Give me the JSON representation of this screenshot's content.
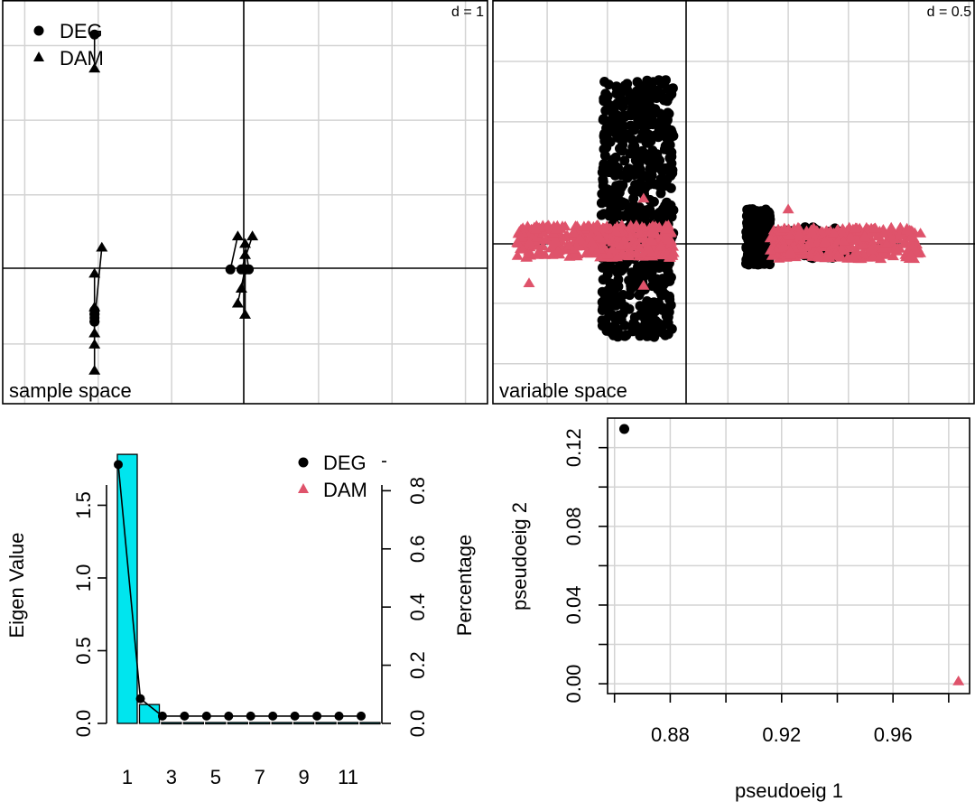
{
  "colors": {
    "deg": "#000000",
    "dam": "#df536b",
    "bar": "#00e5ee",
    "grid": "#d3d3d3"
  },
  "chart_data": [
    {
      "type": "scatter",
      "title": "sample space",
      "scale_label": "d = 1",
      "legend": {
        "placement": "top-left",
        "entries": [
          {
            "label": "DEG",
            "shape": "circle"
          },
          {
            "label": "DAM",
            "shape": "triangle"
          }
        ]
      },
      "x_range": [
        -3.3,
        3.3
      ],
      "y_range": [
        -1.8,
        3.6
      ],
      "grid_step": 1,
      "pairs": [
        {
          "deg": [
            -2.05,
            3.15
          ],
          "dam": [
            -2.05,
            2.7
          ]
        },
        {
          "deg": [
            -2.05,
            -0.7
          ],
          "dam": [
            -1.95,
            0.3
          ]
        },
        {
          "deg": [
            -2.05,
            -0.55
          ],
          "dam": [
            -2.05,
            -0.05
          ]
        },
        {
          "deg": [
            -2.05,
            -0.6
          ],
          "dam": [
            -2.05,
            -0.5
          ]
        },
        {
          "deg": [
            -2.05,
            -0.65
          ],
          "dam": [
            -2.05,
            -1.0
          ]
        },
        {
          "deg": [
            -2.05,
            -0.7
          ],
          "dam": [
            -2.05,
            -1.35
          ]
        },
        {
          "deg": [
            -2.05,
            -0.6
          ],
          "dam": [
            -2.05,
            -0.85
          ]
        },
        {
          "deg": [
            -0.2,
            0.0
          ],
          "dam": [
            -0.1,
            0.45
          ]
        },
        {
          "deg": [
            -0.05,
            0.0
          ],
          "dam": [
            0.1,
            0.45
          ]
        },
        {
          "deg": [
            0.05,
            0.0
          ],
          "dam": [
            0.0,
            0.35
          ]
        },
        {
          "deg": [
            0.0,
            0.0
          ],
          "dam": [
            0.0,
            0.2
          ]
        },
        {
          "deg": [
            0.0,
            0.0
          ],
          "dam": [
            -0.05,
            -0.25
          ]
        },
        {
          "deg": [
            0.0,
            0.0
          ],
          "dam": [
            -0.1,
            -0.45
          ]
        },
        {
          "deg": [
            0.0,
            0.0
          ],
          "dam": [
            0.0,
            -0.6
          ]
        }
      ]
    },
    {
      "type": "scatter",
      "title": "variable space",
      "scale_label": "d = 0.5",
      "x_range": [
        -1.45,
        2.55
      ],
      "y_range": [
        -1.33,
        2.0
      ],
      "grid_step": 0.5,
      "deg_clusters": [
        {
          "n": 650,
          "x": [
            -0.55,
            0.05
          ],
          "y": [
            -0.78,
            1.35
          ]
        },
        {
          "n": 260,
          "x": [
            0.65,
            0.85
          ],
          "y": [
            -0.18,
            0.28
          ]
        },
        {
          "n": 120,
          "x": [
            0.85,
            1.5
          ],
          "y": [
            -0.13,
            0.13
          ]
        }
      ],
      "dam_clusters": [
        {
          "n": 360,
          "x": [
            -1.25,
            0.05
          ],
          "y": [
            -0.12,
            0.15
          ]
        },
        {
          "n": 330,
          "x": [
            0.85,
            2.1
          ],
          "y": [
            -0.13,
            0.13
          ]
        }
      ],
      "dam_extra": [
        [
          -0.2,
          0.37
        ],
        [
          1.0,
          0.28
        ],
        [
          -1.15,
          -0.33
        ],
        [
          -0.2,
          -0.35
        ]
      ]
    },
    {
      "type": "bar",
      "ylabel": "Eigen Value",
      "y2label": "Percentage",
      "x": [
        1,
        2,
        3,
        4,
        5,
        6,
        7,
        8,
        9,
        10,
        11,
        12
      ],
      "x_tick_labels": [
        "1",
        "3",
        "5",
        "7",
        "9",
        "11"
      ],
      "bars": [
        1.85,
        0.13,
        0.006,
        0.006,
        0.006,
        0.006,
        0.006,
        0.006,
        0.006,
        0.006,
        0.006,
        0.006
      ],
      "percentage": [
        0.9,
        0.063,
        0.003,
        0.003,
        0.003,
        0.003,
        0.003,
        0.003,
        0.003,
        0.003,
        0.003,
        0.003
      ],
      "eigen_values": [
        1.78,
        0.17,
        0.05,
        0.05,
        0.05,
        0.05,
        0.05,
        0.05,
        0.05,
        0.05,
        0.05,
        0.05
      ],
      "y_ticks": [
        "0.0",
        "0.5",
        "1.0",
        "1.5"
      ],
      "y2_ticks": [
        "0.0",
        "0.2",
        "0.4",
        "0.6",
        "0.8"
      ],
      "ylim": [
        0,
        1.95
      ],
      "y2lim": [
        0,
        0.975
      ],
      "legend": {
        "placement": "top-right",
        "entries": [
          {
            "label": "DEG",
            "shape": "circle"
          },
          {
            "label": "DAM",
            "shape": "triangle"
          }
        ]
      }
    },
    {
      "type": "scatter",
      "xlabel": "pseudoeig 1",
      "ylabel": "pseudoeig 2",
      "x_ticks": [
        "0.88",
        "0.92",
        "0.96"
      ],
      "y_ticks": [
        "0.00",
        "0.04",
        "0.08",
        "0.12"
      ],
      "xlim": [
        0.8575,
        0.9875
      ],
      "ylim": [
        -0.005,
        0.135
      ],
      "points": [
        {
          "name": "DEG",
          "x": 0.8635,
          "y": 0.1295,
          "shape": "circle"
        },
        {
          "name": "DAM",
          "x": 0.9835,
          "y": 0.0015,
          "shape": "triangle"
        }
      ]
    }
  ]
}
